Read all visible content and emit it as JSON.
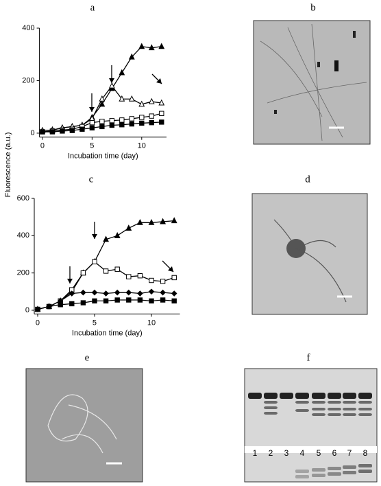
{
  "panel_labels": [
    "a",
    "b",
    "c",
    "d",
    "e",
    "f"
  ],
  "y_axis_label": "Fluorescence (a.u.)",
  "gel": {
    "lanes": [
      "1",
      "2",
      "3",
      "4",
      "5",
      "6",
      "7",
      "8"
    ]
  },
  "chart_data": [
    {
      "type": "line",
      "xlabel": "Incubation time (day)",
      "x": [
        0,
        1,
        2,
        3,
        4,
        5,
        6,
        7,
        8,
        9,
        10,
        11,
        12
      ],
      "xlim": [
        -0.3,
        12.5
      ],
      "xticks": [
        0,
        5,
        10
      ],
      "ylim": [
        -15,
        400
      ],
      "yticks": [
        0,
        200,
        400
      ],
      "series": [
        {
          "marker": "triangle-filled",
          "color": "#000000",
          "values": [
            10,
            12,
            20,
            25,
            30,
            60,
            110,
            170,
            230,
            290,
            330,
            325,
            330
          ]
        },
        {
          "marker": "triangle-open",
          "color": "#000000",
          "values": [
            10,
            12,
            20,
            25,
            30,
            55,
            130,
            180,
            130,
            130,
            110,
            120,
            115
          ]
        },
        {
          "marker": "square-open",
          "color": "#000000",
          "values": [
            5,
            8,
            12,
            15,
            25,
            40,
            45,
            48,
            50,
            55,
            60,
            65,
            75
          ]
        },
        {
          "marker": "square-filled",
          "color": "#000000",
          "values": [
            5,
            5,
            8,
            10,
            15,
            20,
            25,
            30,
            32,
            35,
            38,
            40,
            42
          ]
        }
      ]
    },
    {
      "type": "line",
      "xlabel": "Incubation time (day)",
      "x": [
        0,
        1,
        2,
        3,
        4,
        5,
        6,
        7,
        8,
        9,
        10,
        11,
        12
      ],
      "xlim": [
        -0.3,
        12.5
      ],
      "xticks": [
        0,
        5,
        10
      ],
      "ylim": [
        -20,
        600
      ],
      "yticks": [
        0,
        200,
        400,
        600
      ],
      "series": [
        {
          "marker": "triangle-filled",
          "color": "#000000",
          "values": [
            5,
            20,
            50,
            100,
            200,
            260,
            380,
            400,
            440,
            470,
            470,
            475,
            480
          ]
        },
        {
          "marker": "square-open",
          "color": "#000000",
          "values": [
            5,
            20,
            50,
            110,
            200,
            260,
            210,
            220,
            180,
            185,
            160,
            155,
            175
          ]
        },
        {
          "marker": "diamond-filled",
          "color": "#000000",
          "values": [
            5,
            20,
            50,
            90,
            95,
            95,
            90,
            95,
            95,
            90,
            100,
            95,
            90
          ]
        },
        {
          "marker": "square-filled",
          "color": "#000000",
          "values": [
            5,
            20,
            30,
            35,
            40,
            50,
            50,
            55,
            55,
            55,
            50,
            55,
            50
          ]
        }
      ]
    }
  ]
}
